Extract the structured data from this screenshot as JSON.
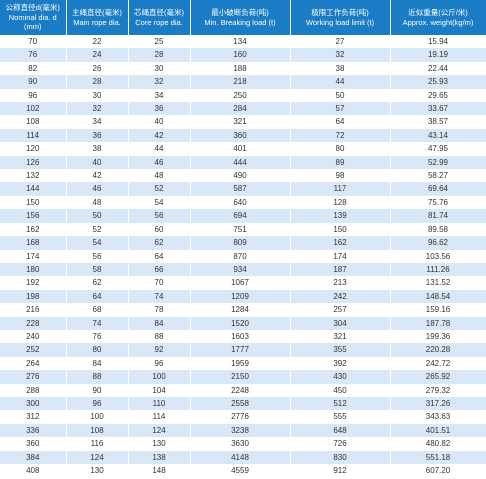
{
  "table": {
    "headers": [
      [
        "公称直径d(毫米)",
        "Nominal dia. d",
        "(mm)"
      ],
      [
        "主绳直径(毫米)",
        "Main rope dia."
      ],
      [
        "芯绳直径(毫米)",
        "Core rope dia."
      ],
      [
        "最小破断负荷(吨)",
        "Min. Breaking load (t)"
      ],
      [
        "极限工作负荷(吨)",
        "Working load limit (t)"
      ],
      [
        "近似重量(公斤/米)",
        "Approx. weight(kg/m)"
      ]
    ],
    "rows": [
      [
        "70",
        "22",
        "25",
        "134",
        "27",
        "15.94"
      ],
      [
        "76",
        "24",
        "28",
        "160",
        "32",
        "19.19"
      ],
      [
        "82",
        "26",
        "30",
        "188",
        "38",
        "22.44"
      ],
      [
        "90",
        "28",
        "32",
        "218",
        "44",
        "25.93"
      ],
      [
        "96",
        "30",
        "34",
        "250",
        "50",
        "29.65"
      ],
      [
        "102",
        "32",
        "36",
        "284",
        "57",
        "33.67"
      ],
      [
        "108",
        "34",
        "40",
        "321",
        "64",
        "38.57"
      ],
      [
        "114",
        "36",
        "42",
        "360",
        "72",
        "43.14"
      ],
      [
        "120",
        "38",
        "44",
        "401",
        "80",
        "47.95"
      ],
      [
        "126",
        "40",
        "46",
        "444",
        "89",
        "52.99"
      ],
      [
        "132",
        "42",
        "48",
        "490",
        "98",
        "58.27"
      ],
      [
        "144",
        "46",
        "52",
        "587",
        "117",
        "69.64"
      ],
      [
        "150",
        "48",
        "54",
        "640",
        "128",
        "75.76"
      ],
      [
        "156",
        "50",
        "56",
        "694",
        "139",
        "81.74"
      ],
      [
        "162",
        "52",
        "60",
        "751",
        "150",
        "89.58"
      ],
      [
        "168",
        "54",
        "62",
        "809",
        "162",
        "96.62"
      ],
      [
        "174",
        "56",
        "64",
        "870",
        "174",
        "103.56"
      ],
      [
        "180",
        "58",
        "66",
        "934",
        "187",
        "111.26"
      ],
      [
        "192",
        "62",
        "70",
        "1067",
        "213",
        "131.52"
      ],
      [
        "198",
        "64",
        "74",
        "1209",
        "242",
        "148.54"
      ],
      [
        "216",
        "68",
        "78",
        "1284",
        "257",
        "159.16"
      ],
      [
        "228",
        "74",
        "84",
        "1520",
        "304",
        "187.78"
      ],
      [
        "240",
        "76",
        "88",
        "1603",
        "321",
        "199.36"
      ],
      [
        "252",
        "80",
        "92",
        "1777",
        "355",
        "220.28"
      ],
      [
        "264",
        "84",
        "96",
        "1959",
        "392",
        "242.72"
      ],
      [
        "276",
        "88",
        "100",
        "2150",
        "430",
        "265.92"
      ],
      [
        "288",
        "90",
        "104",
        "2248",
        "450",
        "279.32"
      ],
      [
        "300",
        "96",
        "110",
        "2558",
        "512",
        "317.26"
      ],
      [
        "312",
        "100",
        "114",
        "2776",
        "555",
        "343.63"
      ],
      [
        "336",
        "108",
        "124",
        "3238",
        "648",
        "401.51"
      ],
      [
        "360",
        "116",
        "130",
        "3630",
        "726",
        "480.82"
      ],
      [
        "384",
        "124",
        "138",
        "4148",
        "830",
        "551.18"
      ],
      [
        "408",
        "130",
        "148",
        "4559",
        "912",
        "607.20"
      ]
    ]
  }
}
